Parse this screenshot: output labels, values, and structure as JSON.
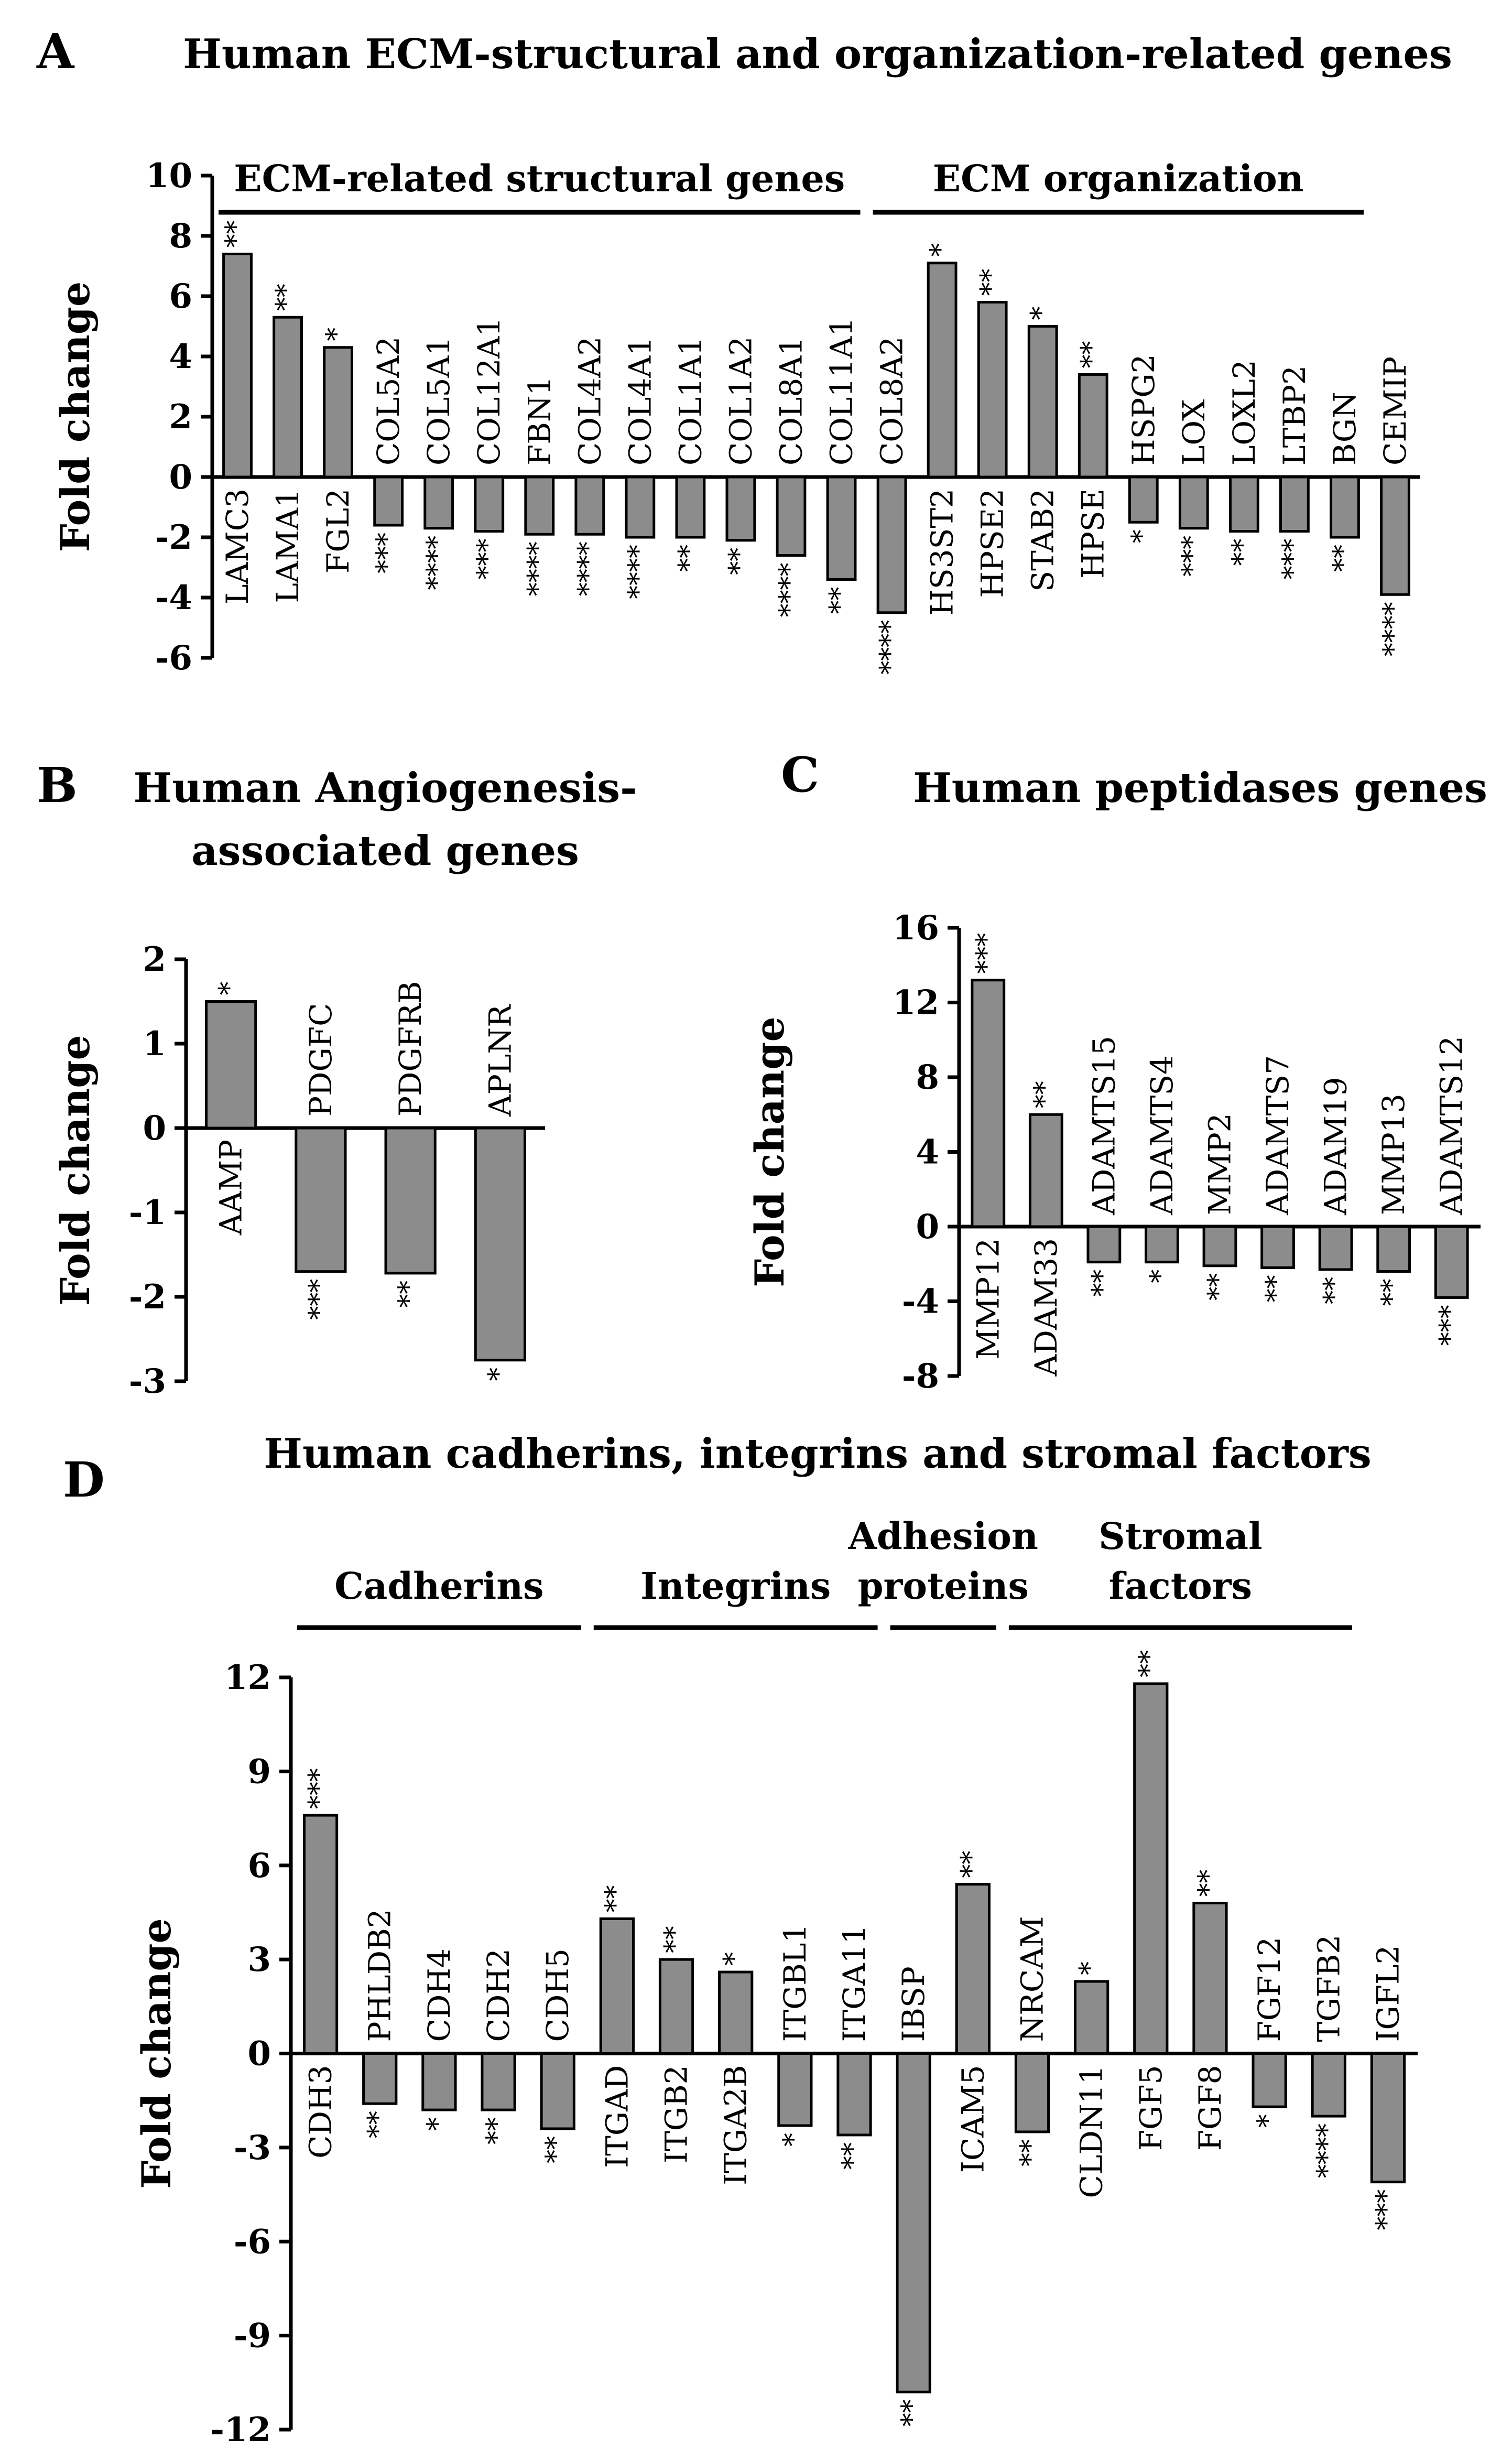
{
  "figure": {
    "colors": {
      "bar": "#8c8c8c",
      "outline": "#000000",
      "background": "#ffffff"
    }
  },
  "chart_data": [
    {
      "panel": "A",
      "type": "bar",
      "title": "Human ECM-structural  and organization-related  genes",
      "xlabel": "",
      "ylabel": "Fold change",
      "ylim": [
        -6,
        10
      ],
      "yticks": [
        10,
        8,
        6,
        4,
        2,
        0,
        -2,
        -4,
        -6
      ],
      "groups": [
        {
          "label": "ECM-related structural genes",
          "from": 0,
          "to": 12
        },
        {
          "label": "ECM organization",
          "from": 13,
          "to": 22
        }
      ],
      "categories": [
        "LAMC3",
        "LAMA1",
        "FGL2",
        "COL5A2",
        "COL5A1",
        "COL12A1",
        "FBN1",
        "COL4A2",
        "COL4A1",
        "COL1A1",
        "COL1A2",
        "COL8A1",
        "COL11A1",
        "COL8A2",
        "HS3ST2",
        "HPSE2",
        "STAB2",
        "HPSE",
        "HSPG2",
        "LOX",
        "LOXL2",
        "LTBP2",
        "BGN",
        "CEMIP"
      ],
      "values": [
        7.4,
        5.3,
        4.3,
        -1.6,
        -1.7,
        -1.8,
        -1.9,
        -1.9,
        -2.0,
        -2.0,
        -2.1,
        -2.6,
        -3.4,
        -4.5,
        7.1,
        5.8,
        5.0,
        3.4,
        -1.5,
        -1.7,
        -1.8,
        -1.8,
        -2.0,
        -3.9
      ],
      "significance": [
        "**",
        "**",
        "*",
        "***",
        "****",
        "***",
        "****",
        "****",
        "****",
        "**",
        "**",
        "****",
        "**",
        "****",
        "*",
        "**",
        "*",
        "**",
        "*",
        "***",
        "**",
        "***",
        "**",
        "****"
      ]
    },
    {
      "panel": "B",
      "type": "bar",
      "title": "Human  Angiogenesis-",
      "title_line2": "associated genes",
      "xlabel": "",
      "ylabel": "Fold change",
      "ylim": [
        -3,
        2
      ],
      "yticks": [
        2,
        1,
        0,
        -1,
        -2,
        -3
      ],
      "categories": [
        "AAMP",
        "PDGFC",
        "PDGFRB",
        "APLNR"
      ],
      "values": [
        1.5,
        -1.7,
        -1.72,
        -2.75
      ],
      "significance": [
        "*",
        "***",
        "**",
        "*"
      ]
    },
    {
      "panel": "C",
      "type": "bar",
      "title": "Human  peptidases  genes",
      "xlabel": "",
      "ylabel": "Fold change",
      "ylim": [
        -8,
        16
      ],
      "yticks": [
        16,
        12,
        8,
        4,
        0,
        -4,
        -8
      ],
      "categories": [
        "MMP12",
        "ADAM33",
        "ADAMTS15",
        "ADAMTS4",
        "MMP2",
        "ADAMTS7",
        "ADAM19",
        "MMP13",
        "ADAMTS12"
      ],
      "values": [
        13.2,
        6.0,
        -1.9,
        -1.9,
        -2.1,
        -2.2,
        -2.3,
        -2.4,
        -3.8
      ],
      "significance": [
        "***",
        "**",
        "**",
        "*",
        "**",
        "**",
        "**",
        "**",
        "***"
      ]
    },
    {
      "panel": "D",
      "type": "bar",
      "title": "Human  cadherins,  integrins  and  stromal  factors",
      "xlabel": "",
      "ylabel": "Fold change",
      "ylim": [
        -12,
        12
      ],
      "yticks": [
        12,
        9,
        6,
        3,
        0,
        -3,
        -6,
        -9,
        -12
      ],
      "groups": [
        {
          "label": "Cadherins",
          "from": 0,
          "to": 4
        },
        {
          "label": "Integrins",
          "from": 5,
          "to": 9
        },
        {
          "label": "Adhesion",
          "label2": "proteins",
          "from": 10,
          "to": 11
        },
        {
          "label": "Stromal",
          "label2": "factors",
          "from": 12,
          "to": 17
        }
      ],
      "categories": [
        "CDH3",
        "PHLDB2",
        "CDH4",
        "CDH2",
        "CDH5",
        "ITGAD",
        "ITGB2",
        "ITGA2B",
        "ITGBL1",
        "ITGA11",
        "IBSP",
        "ICAM5",
        "NRCAM",
        "CLDN11",
        "FGF5",
        "FGF8",
        "FGF12",
        "TGFB2",
        "IGFL2"
      ],
      "values": [
        7.6,
        -1.6,
        -1.8,
        -1.8,
        -2.4,
        4.3,
        3.0,
        2.6,
        -2.3,
        -2.6,
        -10.8,
        5.4,
        -2.5,
        2.3,
        11.8,
        4.8,
        -1.7,
        -2.0,
        -4.1
      ],
      "significance": [
        "***",
        "**",
        "*",
        "**",
        "**",
        "**",
        "**",
        "*",
        "*",
        "**",
        "**",
        "**",
        "**",
        "*",
        "**",
        "**",
        "*",
        "****",
        "***"
      ]
    }
  ],
  "panels": {
    "A": "A",
    "B": "B",
    "C": "C",
    "D": "D"
  }
}
